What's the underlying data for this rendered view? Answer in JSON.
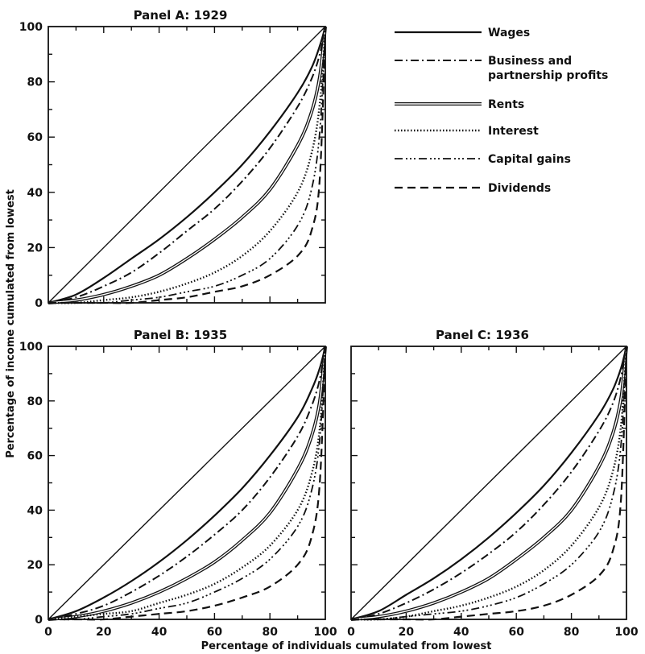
{
  "figure": {
    "ylabel": "Percentage of income cumulated from lowest",
    "xlabel": "Percentage of individuals cumulated from lowest"
  },
  "legend": {
    "items": [
      {
        "series": "wages",
        "lines": [
          "Wages"
        ]
      },
      {
        "series": "business",
        "lines": [
          "Business and",
          "partnership profits"
        ]
      },
      {
        "series": "rents",
        "lines": [
          "Rents"
        ]
      },
      {
        "series": "interest",
        "lines": [
          "Interest"
        ]
      },
      {
        "series": "capital_gains",
        "lines": [
          "Capital gains"
        ]
      },
      {
        "series": "dividends",
        "lines": [
          "Dividends"
        ]
      }
    ]
  },
  "chart_data": [
    {
      "id": "panel-a",
      "type": "line",
      "title": "Panel A:  1929",
      "xlim": [
        0,
        100
      ],
      "ylim": [
        0,
        100
      ],
      "yticks": [
        0,
        20,
        40,
        60,
        80,
        100
      ],
      "xticks": [],
      "x": [
        0,
        10,
        20,
        30,
        40,
        50,
        60,
        70,
        80,
        90,
        95,
        98,
        100
      ],
      "series": [
        {
          "key": "equality",
          "values": [
            0,
            10,
            20,
            30,
            40,
            50,
            60,
            70,
            80,
            90,
            95,
            98,
            100
          ]
        },
        {
          "key": "wages",
          "name": "Wages",
          "values": [
            0,
            3,
            9,
            16,
            23,
            31,
            40,
            50,
            62,
            76,
            85,
            93,
            100
          ]
        },
        {
          "key": "business",
          "name": "Business and partnership profits",
          "values": [
            0,
            2,
            6,
            11,
            18,
            26,
            34,
            44,
            56,
            71,
            81,
            90,
            100
          ]
        },
        {
          "key": "rents",
          "name": "Rents",
          "values": [
            0,
            1,
            3,
            6,
            10,
            16,
            23,
            31,
            41,
            57,
            69,
            82,
            100
          ]
        },
        {
          "key": "interest",
          "name": "Interest",
          "values": [
            0,
            0,
            1,
            2,
            4,
            7,
            11,
            17,
            26,
            40,
            54,
            72,
            100
          ]
        },
        {
          "key": "capital_gains",
          "name": "Capital gains",
          "values": [
            0,
            0,
            0,
            1,
            2,
            4,
            6,
            10,
            16,
            28,
            41,
            62,
            100
          ]
        },
        {
          "key": "dividends",
          "name": "Dividends",
          "values": [
            0,
            0,
            0,
            0,
            1,
            2,
            4,
            6,
            10,
            17,
            26,
            45,
            100
          ]
        }
      ]
    },
    {
      "id": "panel-b",
      "type": "line",
      "title": "Panel B:  1935",
      "xlim": [
        0,
        100
      ],
      "ylim": [
        0,
        100
      ],
      "yticks": [
        0,
        20,
        40,
        60,
        80,
        100
      ],
      "xticks": [
        0,
        20,
        40,
        60,
        80,
        100
      ],
      "x": [
        0,
        10,
        20,
        30,
        40,
        50,
        60,
        70,
        80,
        90,
        95,
        98,
        100
      ],
      "series": [
        {
          "key": "equality",
          "values": [
            0,
            10,
            20,
            30,
            40,
            50,
            60,
            70,
            80,
            90,
            95,
            98,
            100
          ]
        },
        {
          "key": "wages",
          "name": "Wages",
          "values": [
            0,
            3,
            8,
            14,
            21,
            29,
            38,
            48,
            60,
            74,
            84,
            92,
            100
          ]
        },
        {
          "key": "business",
          "name": "Business and partnership profits",
          "values": [
            0,
            2,
            5,
            10,
            16,
            23,
            31,
            40,
            52,
            67,
            78,
            88,
            100
          ]
        },
        {
          "key": "rents",
          "name": "Rents",
          "values": [
            0,
            1,
            3,
            6,
            10,
            15,
            21,
            29,
            39,
            55,
            67,
            80,
            100
          ]
        },
        {
          "key": "interest",
          "name": "Interest",
          "values": [
            0,
            1,
            2,
            3,
            6,
            9,
            13,
            19,
            27,
            40,
            53,
            70,
            100
          ]
        },
        {
          "key": "capital_gains",
          "name": "Capital gains",
          "values": [
            0,
            0,
            1,
            2,
            4,
            6,
            10,
            15,
            22,
            34,
            47,
            66,
            100
          ]
        },
        {
          "key": "dividends",
          "name": "Dividends",
          "values": [
            0,
            0,
            0,
            1,
            2,
            3,
            5,
            8,
            12,
            20,
            30,
            50,
            100
          ]
        }
      ]
    },
    {
      "id": "panel-c",
      "type": "line",
      "title": "Panel C:   1936",
      "xlim": [
        0,
        100
      ],
      "ylim": [
        0,
        100
      ],
      "yticks": [],
      "xticks": [
        0,
        20,
        40,
        60,
        80,
        100
      ],
      "x": [
        0,
        10,
        20,
        30,
        40,
        50,
        60,
        70,
        80,
        90,
        95,
        98,
        100
      ],
      "series": [
        {
          "key": "equality",
          "values": [
            0,
            10,
            20,
            30,
            40,
            50,
            60,
            70,
            80,
            90,
            95,
            98,
            100
          ]
        },
        {
          "key": "wages",
          "name": "Wages",
          "values": [
            0,
            3,
            9,
            15,
            22,
            30,
            39,
            49,
            61,
            75,
            84,
            92,
            100
          ]
        },
        {
          "key": "business",
          "name": "Business and partnership profits",
          "values": [
            0,
            2,
            6,
            11,
            17,
            24,
            32,
            42,
            54,
            69,
            79,
            89,
            100
          ]
        },
        {
          "key": "rents",
          "name": "Rents",
          "values": [
            0,
            1,
            3,
            6,
            10,
            15,
            22,
            30,
            40,
            56,
            68,
            81,
            100
          ]
        },
        {
          "key": "interest",
          "name": "Interest",
          "values": [
            0,
            0,
            1,
            3,
            5,
            8,
            12,
            18,
            27,
            41,
            54,
            71,
            100
          ]
        },
        {
          "key": "capital_gains",
          "name": "Capital gains",
          "values": [
            0,
            0,
            1,
            2,
            3,
            5,
            8,
            13,
            20,
            32,
            45,
            64,
            100
          ]
        },
        {
          "key": "dividends",
          "name": "Dividends",
          "values": [
            0,
            0,
            0,
            0,
            1,
            2,
            3,
            5,
            9,
            16,
            25,
            44,
            100
          ]
        }
      ]
    }
  ],
  "styles": {
    "ink": "#111111",
    "background": "#ffffff"
  }
}
